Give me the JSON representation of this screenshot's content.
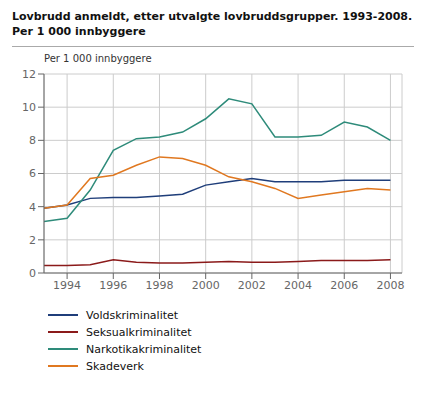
{
  "chart_data": {
    "type": "line",
    "title": "Lovbrudd anmeldt, etter utvalgte lovbruddsgrupper. 1993-2008.",
    "subtitle": "Per 1 000 innbyggere",
    "ylabel": "Per 1 000 innbyggere",
    "x": [
      1993,
      1994,
      1995,
      1996,
      1997,
      1998,
      1999,
      2000,
      2001,
      2002,
      2003,
      2004,
      2005,
      2006,
      2007,
      2008
    ],
    "series": [
      {
        "name": "Voldskriminalitet",
        "color": "#1f3e7a",
        "values": [
          3.9,
          4.1,
          4.5,
          4.55,
          4.55,
          4.65,
          4.75,
          5.3,
          5.5,
          5.7,
          5.5,
          5.5,
          5.5,
          5.6,
          5.6,
          5.6
        ]
      },
      {
        "name": "Seksualkriminalitet",
        "color": "#8b1a1a",
        "values": [
          0.45,
          0.45,
          0.5,
          0.8,
          0.65,
          0.6,
          0.6,
          0.65,
          0.7,
          0.65,
          0.65,
          0.7,
          0.75,
          0.75,
          0.75,
          0.8
        ]
      },
      {
        "name": "Narkotikakriminalitet",
        "color": "#2e8b7a",
        "values": [
          3.1,
          3.3,
          5.0,
          7.4,
          8.1,
          8.2,
          8.5,
          9.3,
          10.5,
          10.2,
          8.2,
          8.2,
          8.3,
          9.1,
          8.8,
          8.0
        ]
      },
      {
        "name": "Skadeverk",
        "color": "#e07820",
        "values": [
          3.9,
          4.1,
          5.7,
          5.9,
          6.5,
          7.0,
          6.9,
          6.5,
          5.8,
          5.5,
          5.1,
          4.5,
          4.7,
          4.9,
          5.1,
          5.0
        ]
      }
    ],
    "xlim": [
      1993,
      2008.5
    ],
    "xticks": [
      1994,
      1996,
      1998,
      2000,
      2002,
      2004,
      2006,
      2008
    ],
    "ylim": [
      0,
      12
    ],
    "yticks": [
      0,
      2,
      4,
      6,
      8,
      10,
      12
    ],
    "grid": true,
    "legend": "bottom"
  }
}
